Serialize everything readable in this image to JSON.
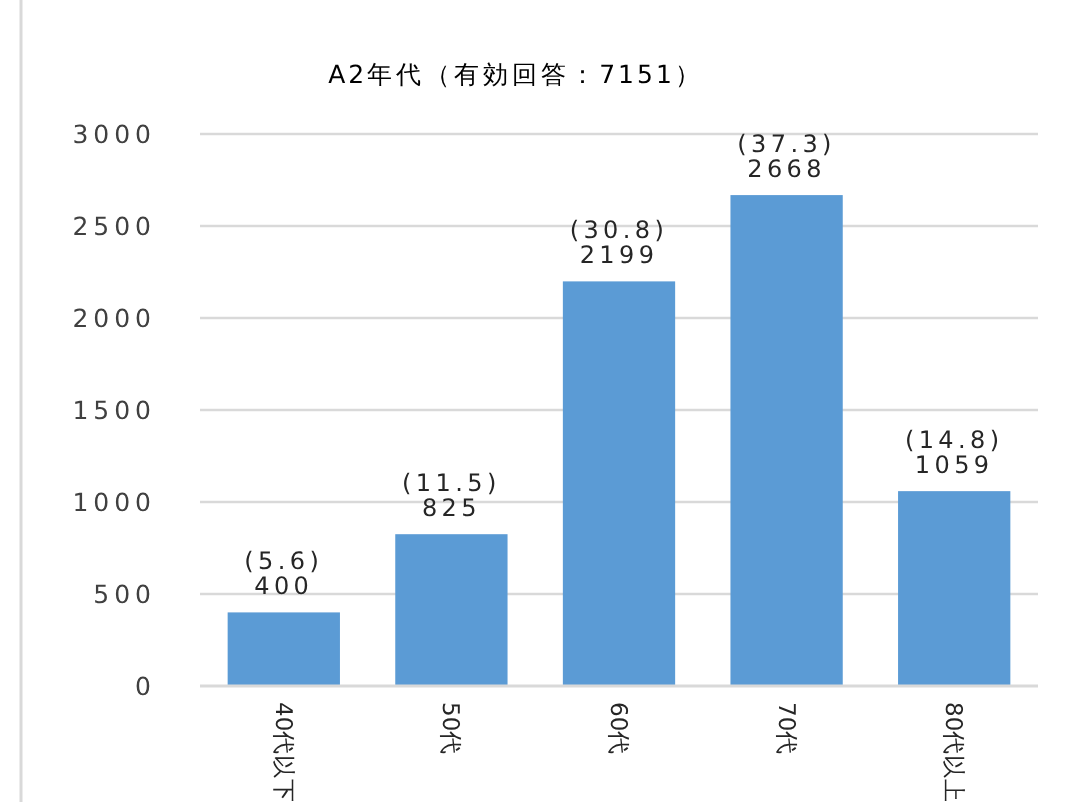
{
  "chart_data": {
    "type": "bar",
    "title": "A2年代（有効回答：7151）",
    "categories": [
      "40代以下",
      "50代",
      "60代",
      "70代",
      "80代以上"
    ],
    "values": [
      400,
      825,
      2199,
      2668,
      1059
    ],
    "value_labels": [
      "(5.6)\n400",
      "(11.5)\n825",
      "(30.8)\n2199",
      "(37.3)\n2668",
      "(14.8)\n1059"
    ],
    "color": "#5b9bd5",
    "ylim": [
      0,
      3000
    ],
    "yticks": [
      0,
      500,
      1000,
      1500,
      2000,
      2500,
      3000
    ],
    "grid": "y"
  }
}
